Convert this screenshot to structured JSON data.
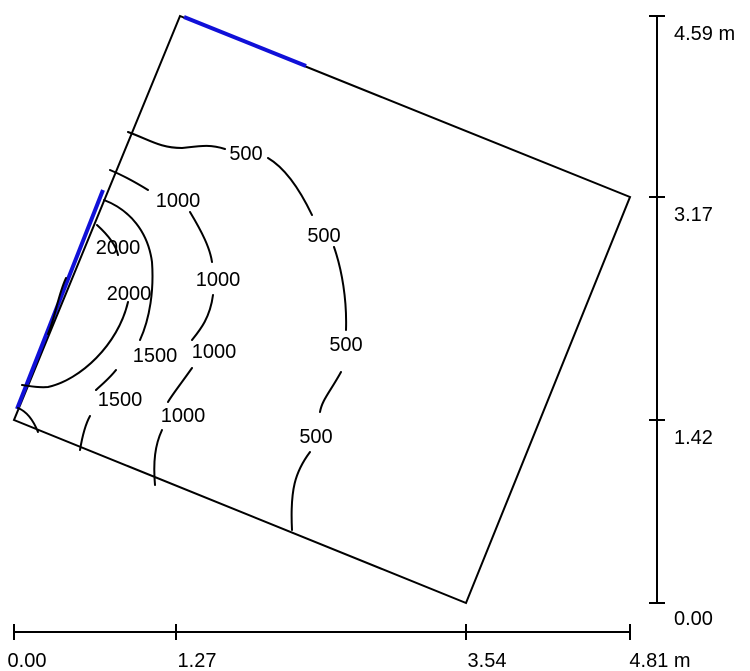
{
  "colors": {
    "outline": "#000000",
    "contour": "#000000",
    "highlight": "#1010d8"
  },
  "x_scale": {
    "unit": "m",
    "ticks": [
      {
        "value": 0.0,
        "label": "0.00"
      },
      {
        "value": 1.27,
        "label": "1.27"
      },
      {
        "value": 3.54,
        "label": "3.54"
      },
      {
        "value": 4.81,
        "label": "4.81 m"
      }
    ]
  },
  "y_scale": {
    "unit": "m",
    "ticks": [
      {
        "value": 0.0,
        "label": "0.00"
      },
      {
        "value": 1.42,
        "label": "1.42"
      },
      {
        "value": 3.17,
        "label": "3.17"
      },
      {
        "value": 4.59,
        "label": "4.59 m"
      }
    ]
  },
  "contour_labels": {
    "c500_a": "500",
    "c500_b": "500",
    "c500_c": "500",
    "c500_d": "500",
    "c1000_a": "1000",
    "c1000_b": "1000",
    "c1000_c": "1000",
    "c1000_d": "1000",
    "c1500_a": "1500",
    "c1500_b": "1500",
    "c2000_a": "2000",
    "c2000_b": "2000"
  }
}
